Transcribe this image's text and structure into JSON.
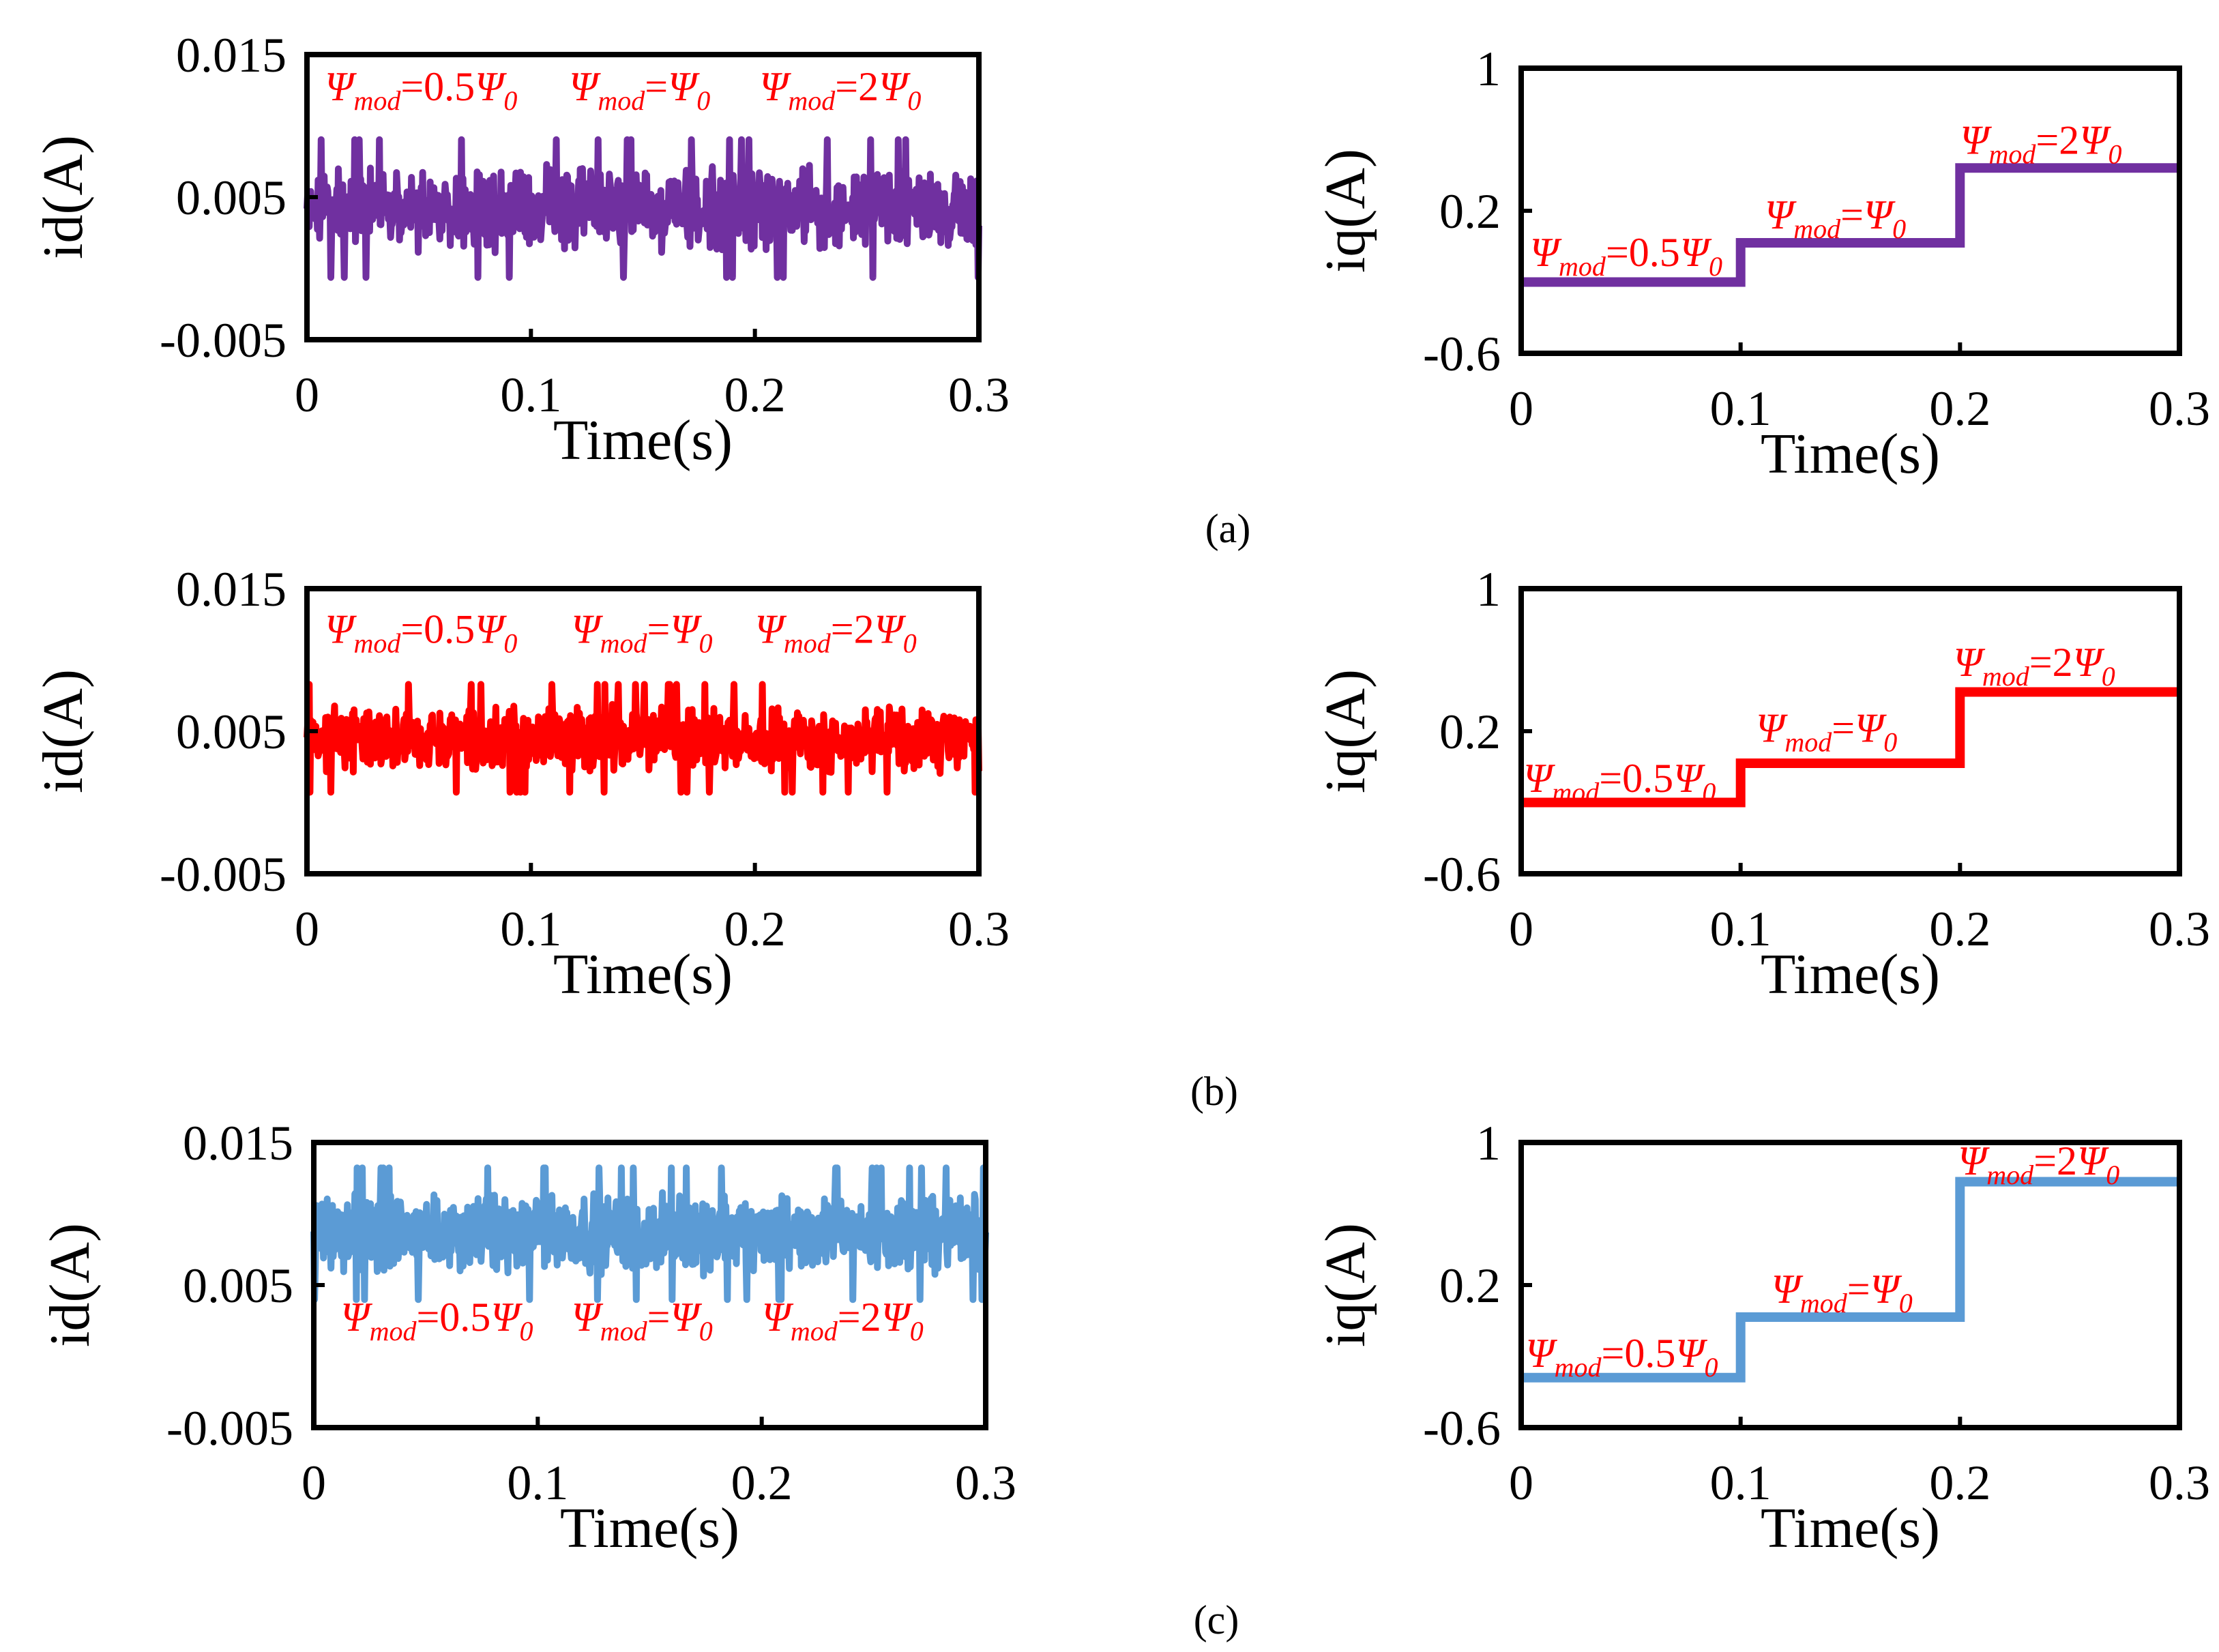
{
  "chart_data": [
    {
      "type": "line",
      "panel": "a",
      "signal": "id",
      "color": "#7030a0",
      "xlabel": "Time(s)",
      "ylabel": "id(A)",
      "xlim": [
        0,
        0.3
      ],
      "ylim": [
        -0.005,
        0.015
      ],
      "xticks": [
        "0",
        "0.1",
        "0.2",
        "0.3"
      ],
      "yticks": [
        "0.015",
        "0.005",
        "-0.005"
      ],
      "noise": {
        "mean": 0.0042,
        "amplitude": 0.0023,
        "min": -0.0007,
        "max": 0.0095
      },
      "annotations": [
        {
          "sym": "Ψ",
          "sub": "mod",
          "eq": "=",
          "num": "0.5",
          "rhs_sym": "Ψ",
          "rhs_sub": "0",
          "x": 0.008,
          "y": 0.0118
        },
        {
          "sym": "Ψ",
          "sub": "mod",
          "eq": "=",
          "num": "",
          "rhs_sym": "Ψ",
          "rhs_sub": "0",
          "x": 0.117,
          "y": 0.0118
        },
        {
          "sym": "Ψ",
          "sub": "mod",
          "eq": "=",
          "num": "2",
          "rhs_sym": "Ψ",
          "rhs_sub": "0",
          "x": 0.202,
          "y": 0.0118
        }
      ]
    },
    {
      "type": "line",
      "panel": "a",
      "signal": "iq",
      "color": "#7030a0",
      "xlabel": "Time(s)",
      "ylabel": "iq(A)",
      "xlim": [
        0,
        0.3
      ],
      "ylim": [
        -0.6,
        1
      ],
      "xticks": [
        "0",
        "0.1",
        "0.2",
        "0.3"
      ],
      "yticks": [
        "1",
        "0.2",
        "-0.6"
      ],
      "x": [
        0,
        0.1,
        0.1,
        0.2,
        0.2,
        0.3
      ],
      "y": [
        -0.2,
        -0.2,
        0.02,
        0.02,
        0.44,
        0.44
      ],
      "annotations": [
        {
          "sym": "Ψ",
          "sub": "mod",
          "eq": "=",
          "num": "0.5",
          "rhs_sym": "Ψ",
          "rhs_sub": "0",
          "x": 0.004,
          "y": -0.11
        },
        {
          "sym": "Ψ",
          "sub": "mod",
          "eq": "=",
          "num": "",
          "rhs_sym": "Ψ",
          "rhs_sub": "0",
          "x": 0.111,
          "y": 0.1
        },
        {
          "sym": "Ψ",
          "sub": "mod",
          "eq": "=",
          "num": "2",
          "rhs_sym": "Ψ",
          "rhs_sub": "0",
          "x": 0.2,
          "y": 0.52
        }
      ]
    },
    {
      "type": "line",
      "panel": "b",
      "signal": "id",
      "color": "#ff0000",
      "xlabel": "Time(s)",
      "ylabel": "id(A)",
      "xlim": [
        0,
        0.3
      ],
      "ylim": [
        -0.005,
        0.015
      ],
      "xticks": [
        "0",
        "0.1",
        "0.2",
        "0.3"
      ],
      "yticks": [
        "0.015",
        "0.005",
        "-0.005"
      ],
      "noise": {
        "mean": 0.0045,
        "amplitude": 0.0018,
        "min": 0.0007,
        "max": 0.009
      },
      "annotations": [
        {
          "sym": "Ψ",
          "sub": "mod",
          "eq": "=",
          "num": "0.5",
          "rhs_sym": "Ψ",
          "rhs_sub": "0",
          "x": 0.008,
          "y": 0.0112
        },
        {
          "sym": "Ψ",
          "sub": "mod",
          "eq": "=",
          "num": "",
          "rhs_sym": "Ψ",
          "rhs_sub": "0",
          "x": 0.118,
          "y": 0.0112
        },
        {
          "sym": "Ψ",
          "sub": "mod",
          "eq": "=",
          "num": "2",
          "rhs_sym": "Ψ",
          "rhs_sub": "0",
          "x": 0.2,
          "y": 0.0112
        }
      ]
    },
    {
      "type": "line",
      "panel": "b",
      "signal": "iq",
      "color": "#ff0000",
      "xlabel": "Time(s)",
      "ylabel": "iq(A)",
      "xlim": [
        0,
        0.3
      ],
      "ylim": [
        -0.6,
        1
      ],
      "xticks": [
        "0",
        "0.1",
        "0.2",
        "0.3"
      ],
      "yticks": [
        "1",
        "0.2",
        "-0.6"
      ],
      "x": [
        0,
        0.1,
        0.1,
        0.2,
        0.2,
        0.3
      ],
      "y": [
        -0.2,
        -0.2,
        0.02,
        0.02,
        0.42,
        0.42
      ],
      "annotations": [
        {
          "sym": "Ψ",
          "sub": "mod",
          "eq": "=",
          "num": "0.5",
          "rhs_sym": "Ψ",
          "rhs_sub": "0",
          "x": 0.001,
          "y": -0.14
        },
        {
          "sym": "Ψ",
          "sub": "mod",
          "eq": "=",
          "num": "",
          "rhs_sym": "Ψ",
          "rhs_sub": "0",
          "x": 0.107,
          "y": 0.14
        },
        {
          "sym": "Ψ",
          "sub": "mod",
          "eq": "=",
          "num": "2",
          "rhs_sym": "Ψ",
          "rhs_sub": "0",
          "x": 0.197,
          "y": 0.51
        }
      ]
    },
    {
      "type": "line",
      "panel": "c",
      "signal": "id",
      "color": "#5b9bd5",
      "xlabel": "Time(s)",
      "ylabel": "id(A)",
      "xlim": [
        0,
        0.3
      ],
      "ylim": [
        -0.005,
        0.015
      ],
      "xticks": [
        "0",
        "0.1",
        "0.2",
        "0.3"
      ],
      "yticks": [
        "0.015",
        "0.005",
        "-0.005"
      ],
      "noise": {
        "mean": 0.0086,
        "amplitude": 0.0022,
        "min": 0.0028,
        "max": 0.0135
      },
      "annotations": [
        {
          "sym": "Ψ",
          "sub": "mod",
          "eq": "=",
          "num": "0.5",
          "rhs_sym": "Ψ",
          "rhs_sub": "0",
          "x": 0.012,
          "y": 0.0018
        },
        {
          "sym": "Ψ",
          "sub": "mod",
          "eq": "=",
          "num": "",
          "rhs_sym": "Ψ",
          "rhs_sub": "0",
          "x": 0.115,
          "y": 0.0018
        },
        {
          "sym": "Ψ",
          "sub": "mod",
          "eq": "=",
          "num": "2",
          "rhs_sym": "Ψ",
          "rhs_sub": "0",
          "x": 0.2,
          "y": 0.0018
        }
      ]
    },
    {
      "type": "line",
      "panel": "c",
      "signal": "iq",
      "color": "#5b9bd5",
      "xlabel": "Time(s)",
      "ylabel": "iq(A)",
      "xlim": [
        0,
        0.3
      ],
      "ylim": [
        -0.6,
        1
      ],
      "xticks": [
        "0",
        "0.1",
        "0.2",
        "0.3"
      ],
      "yticks": [
        "1",
        "0.2",
        "-0.6"
      ],
      "x": [
        0,
        0.1,
        0.1,
        0.2,
        0.2,
        0.3
      ],
      "y": [
        -0.32,
        -0.32,
        0.02,
        0.02,
        0.78,
        0.78
      ],
      "annotations": [
        {
          "sym": "Ψ",
          "sub": "mod",
          "eq": "=",
          "num": "0.5",
          "rhs_sym": "Ψ",
          "rhs_sub": "0",
          "x": 0.002,
          "y": -0.26
        },
        {
          "sym": "Ψ",
          "sub": "mod",
          "eq": "=",
          "num": "",
          "rhs_sym": "Ψ",
          "rhs_sub": "0",
          "x": 0.114,
          "y": 0.1
        },
        {
          "sym": "Ψ",
          "sub": "mod",
          "eq": "=",
          "num": "2",
          "rhs_sym": "Ψ",
          "rhs_sub": "0",
          "x": 0.199,
          "y": 0.82
        }
      ]
    }
  ],
  "captions": [
    "(a)",
    "(b)",
    "(c)"
  ]
}
